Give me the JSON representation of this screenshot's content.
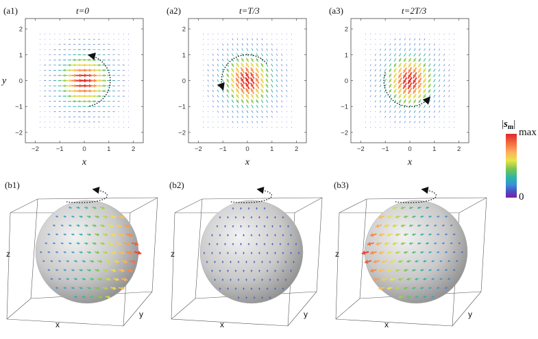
{
  "panels_top": [
    {
      "tag": "(a1)",
      "time": "t=0"
    },
    {
      "tag": "(a2)",
      "time": "t=T/3"
    },
    {
      "tag": "(a3)",
      "time": "t=2T/3"
    }
  ],
  "panels_bottom": [
    {
      "tag": "(b1)"
    },
    {
      "tag": "(b2)"
    },
    {
      "tag": "(b3)"
    }
  ],
  "axes_2d": {
    "xlabel": "x",
    "ylabel": "y",
    "xticks": [
      "−2",
      "−1",
      "0",
      "1",
      "2"
    ],
    "yticks": [
      "2",
      "1",
      "0",
      "−1",
      "−2"
    ]
  },
  "axes_3d": {
    "x": "x",
    "y": "y",
    "z": "z"
  },
  "colorbar": {
    "label_prefix": "|",
    "label_symbol": "s",
    "label_sub": "m",
    "label_suffix": "|",
    "max_label": "max",
    "min_label": "0",
    "stops": [
      "#d73027",
      "#f46d43",
      "#fdae61",
      "#fee08b",
      "#d9ef8b",
      "#66bd63",
      "#1a9850",
      "#35b0c8",
      "#4575b4",
      "#5e3c99",
      "#762a83"
    ]
  }
}
